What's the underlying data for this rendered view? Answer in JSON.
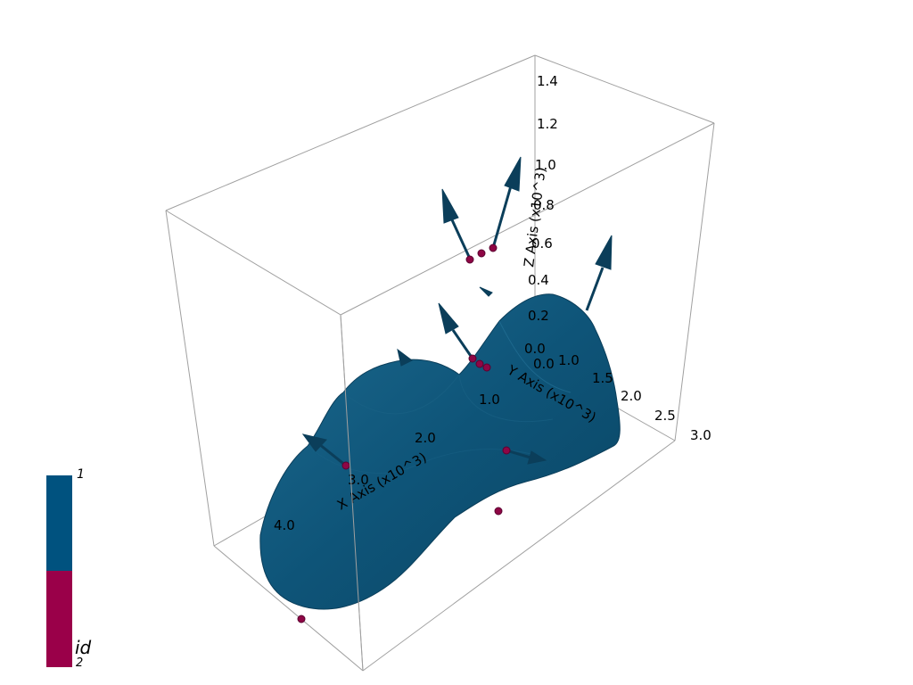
{
  "axes": {
    "x_title": "X Axis (x10^3)",
    "y_title": "Y Axis (x10^3)",
    "z_title": "Z Axis (x10^3)",
    "x_ticks": [
      "1.0",
      "2.0",
      "3.0",
      "4.0"
    ],
    "y_ticks": [
      "0.0",
      "1.0",
      "1.5",
      "2.0",
      "2.5",
      "3.0"
    ],
    "z_ticks": [
      "0.0",
      "0.2",
      "0.4",
      "0.6",
      "0.8",
      "1.0",
      "1.2",
      "1.4"
    ]
  },
  "colorbar": {
    "title": "id",
    "top_label": "1",
    "bottom_label": "2",
    "colors": {
      "1": "#00527F",
      "2": "#9A0049"
    }
  },
  "colors": {
    "surface": "#0B4A6B",
    "surface_light": "#1D6A8F",
    "glyph": "#0B3E5A",
    "points": "#8E0645",
    "box": "#9a9a9a"
  }
}
